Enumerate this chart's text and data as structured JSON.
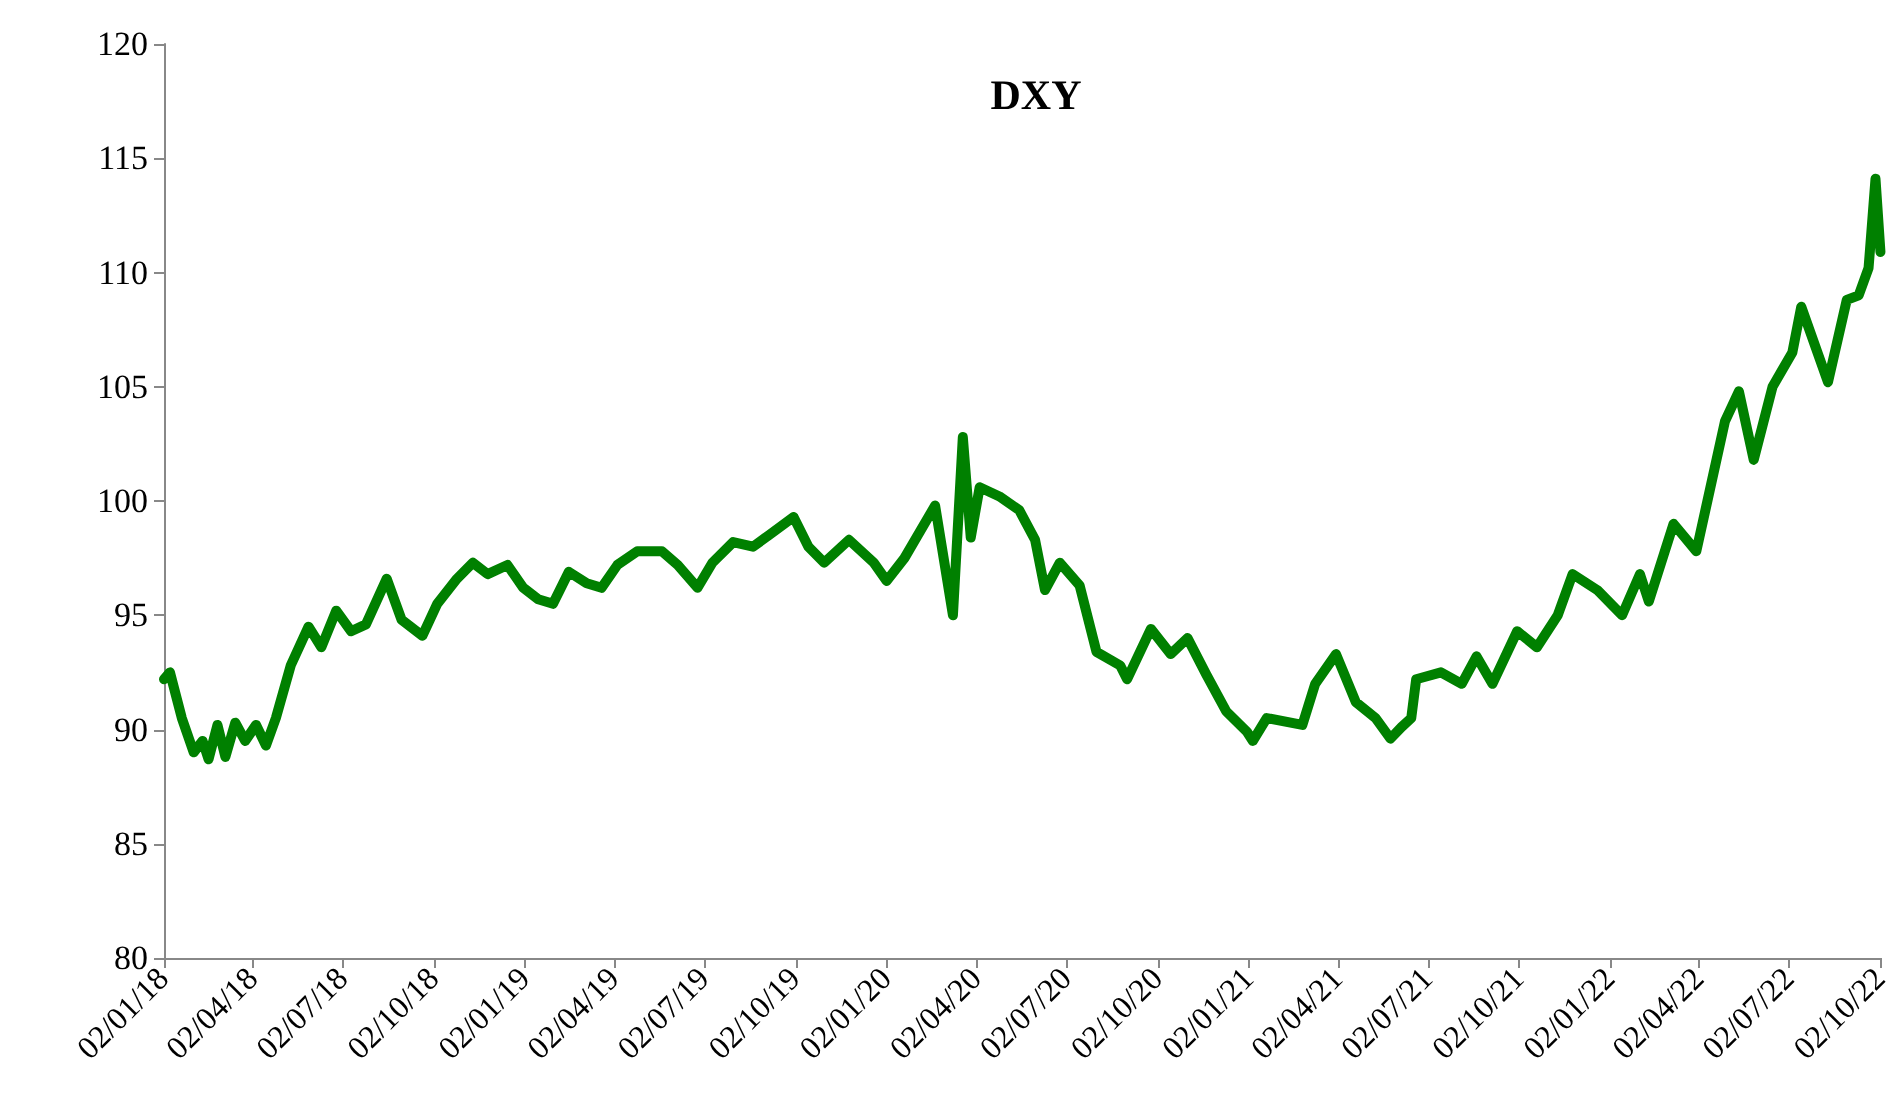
{
  "chart_data": {
    "type": "line",
    "title": "DXY",
    "x": [
      "2018-01-02",
      "2018-01-08",
      "2018-01-20",
      "2018-02-01",
      "2018-02-10",
      "2018-02-16",
      "2018-02-25",
      "2018-03-05",
      "2018-03-15",
      "2018-03-25",
      "2018-04-05",
      "2018-04-15",
      "2018-04-25",
      "2018-05-10",
      "2018-05-28",
      "2018-06-10",
      "2018-06-25",
      "2018-07-10",
      "2018-07-25",
      "2018-08-15",
      "2018-08-30",
      "2018-09-20",
      "2018-10-05",
      "2018-10-25",
      "2018-11-10",
      "2018-11-25",
      "2018-12-15",
      "2018-12-31",
      "2019-01-15",
      "2019-01-30",
      "2019-02-15",
      "2019-03-05",
      "2019-03-20",
      "2019-04-05",
      "2019-04-25",
      "2019-05-20",
      "2019-06-05",
      "2019-06-25",
      "2019-07-10",
      "2019-07-31",
      "2019-08-20",
      "2019-09-05",
      "2019-09-30",
      "2019-10-15",
      "2019-10-31",
      "2019-11-25",
      "2019-12-20",
      "2020-01-02",
      "2020-01-20",
      "2020-02-20",
      "2020-03-09",
      "2020-03-19",
      "2020-03-27",
      "2020-04-05",
      "2020-04-25",
      "2020-05-15",
      "2020-05-31",
      "2020-06-10",
      "2020-06-25",
      "2020-07-15",
      "2020-08-01",
      "2020-08-25",
      "2020-09-01",
      "2020-09-25",
      "2020-10-15",
      "2020-11-01",
      "2020-11-20",
      "2020-12-10",
      "2020-12-31",
      "2021-01-06",
      "2021-01-20",
      "2021-02-25",
      "2021-03-10",
      "2021-03-31",
      "2021-04-20",
      "2021-05-10",
      "2021-05-25",
      "2021-06-05",
      "2021-06-15",
      "2021-06-20",
      "2021-07-15",
      "2021-08-05",
      "2021-08-20",
      "2021-09-05",
      "2021-09-30",
      "2021-10-20",
      "2021-11-10",
      "2021-11-25",
      "2021-12-20",
      "2022-01-14",
      "2022-02-01",
      "2022-02-10",
      "2022-03-07",
      "2022-03-30",
      "2022-04-28",
      "2022-05-12",
      "2022-05-27",
      "2022-06-15",
      "2022-07-05",
      "2022-07-14",
      "2022-08-10",
      "2022-08-29",
      "2022-09-10",
      "2022-09-20",
      "2022-09-27",
      "2022-10-02"
    ],
    "series": [
      {
        "color": "#008000",
        "values": [
          92.2,
          92.5,
          90.5,
          89.0,
          89.5,
          88.7,
          90.2,
          88.8,
          90.3,
          89.5,
          90.2,
          89.3,
          90.5,
          92.8,
          94.5,
          93.6,
          95.2,
          94.3,
          94.6,
          96.6,
          94.8,
          94.1,
          95.5,
          96.6,
          97.3,
          96.8,
          97.2,
          96.2,
          95.7,
          95.5,
          96.9,
          96.4,
          96.2,
          97.2,
          97.8,
          97.8,
          97.2,
          96.2,
          97.3,
          98.2,
          98.0,
          98.5,
          99.3,
          98.0,
          97.3,
          98.3,
          97.3,
          96.5,
          97.5,
          99.8,
          95.0,
          102.8,
          98.4,
          100.6,
          100.2,
          99.6,
          98.3,
          96.1,
          97.3,
          96.3,
          93.4,
          92.8,
          92.2,
          94.4,
          93.3,
          94.0,
          92.4,
          90.8,
          89.9,
          89.5,
          90.5,
          90.2,
          92.0,
          93.3,
          91.2,
          90.5,
          89.6,
          90.1,
          90.5,
          92.2,
          92.5,
          92.0,
          93.2,
          92.0,
          94.3,
          93.6,
          95.0,
          96.8,
          96.1,
          95.0,
          96.8,
          95.6,
          99.0,
          97.8,
          103.5,
          104.8,
          101.8,
          105.0,
          106.5,
          108.5,
          105.2,
          108.8,
          109.0,
          110.2,
          114.1,
          110.9
        ]
      }
    ],
    "xlim": [
      "2018-01-02",
      "2022-10-02"
    ],
    "xticks": [
      {
        "value": "2018-01-02",
        "label": "02/01/18"
      },
      {
        "value": "2018-04-02",
        "label": "02/04/18"
      },
      {
        "value": "2018-07-02",
        "label": "02/07/18"
      },
      {
        "value": "2018-10-02",
        "label": "02/10/18"
      },
      {
        "value": "2019-01-02",
        "label": "02/01/19"
      },
      {
        "value": "2019-04-02",
        "label": "02/04/19"
      },
      {
        "value": "2019-07-02",
        "label": "02/07/19"
      },
      {
        "value": "2019-10-02",
        "label": "02/10/19"
      },
      {
        "value": "2020-01-02",
        "label": "02/01/20"
      },
      {
        "value": "2020-04-02",
        "label": "02/04/20"
      },
      {
        "value": "2020-07-02",
        "label": "02/07/20"
      },
      {
        "value": "2020-10-02",
        "label": "02/10/20"
      },
      {
        "value": "2021-01-02",
        "label": "02/01/21"
      },
      {
        "value": "2021-04-02",
        "label": "02/04/21"
      },
      {
        "value": "2021-07-02",
        "label": "02/07/21"
      },
      {
        "value": "2021-10-02",
        "label": "02/10/21"
      },
      {
        "value": "2022-01-02",
        "label": "02/01/22"
      },
      {
        "value": "2022-04-02",
        "label": "02/04/22"
      },
      {
        "value": "2022-07-02",
        "label": "02/07/22"
      },
      {
        "value": "2022-10-02",
        "label": "02/10/22"
      }
    ],
    "ylim": [
      80,
      120
    ],
    "yticks": [
      80,
      85,
      90,
      95,
      100,
      105,
      110,
      115,
      120
    ],
    "marker": "none",
    "line_style": "solid"
  }
}
